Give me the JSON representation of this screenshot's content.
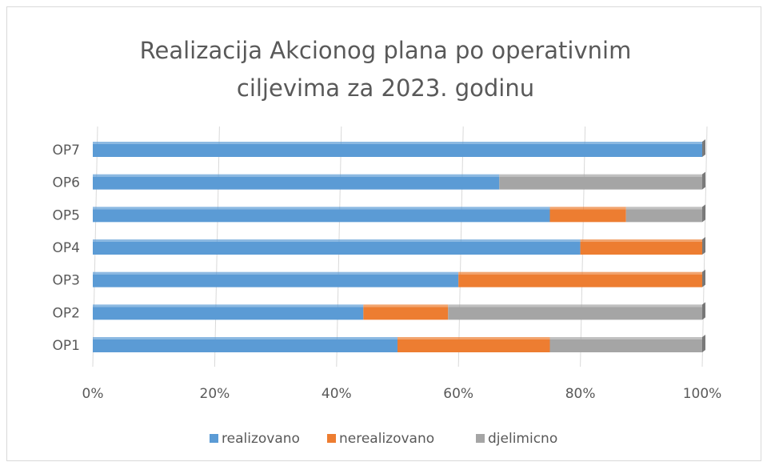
{
  "chart_data": {
    "type": "stacked_bar_horizontal",
    "title": "Realizacija Akcionog plana po operativnim ciljevima za 2023. godinu",
    "categories": [
      "OP1",
      "OP2",
      "OP3",
      "OP4",
      "OP5",
      "OP6",
      "OP7"
    ],
    "series": [
      {
        "name": "realizovano",
        "color": "#5b9bd5",
        "values": [
          50,
          44.4,
          60,
          80,
          75,
          66.7,
          100
        ]
      },
      {
        "name": "nerealizovano",
        "color": "#ed7d31",
        "values": [
          25,
          13.9,
          40,
          20,
          12.5,
          0,
          0
        ]
      },
      {
        "name": "djelimicno",
        "color": "#a5a5a5",
        "values": [
          25,
          41.7,
          0,
          0,
          12.5,
          33.3,
          0
        ]
      }
    ],
    "xlim": [
      0,
      100
    ],
    "xticks": [
      {
        "value": 0,
        "label": "0%"
      },
      {
        "value": 20,
        "label": "20%"
      },
      {
        "value": 40,
        "label": "40%"
      },
      {
        "value": 60,
        "label": "60%"
      },
      {
        "value": 80,
        "label": "80%"
      },
      {
        "value": 100,
        "label": "100%"
      }
    ],
    "grid": true,
    "legend": "bottom"
  }
}
